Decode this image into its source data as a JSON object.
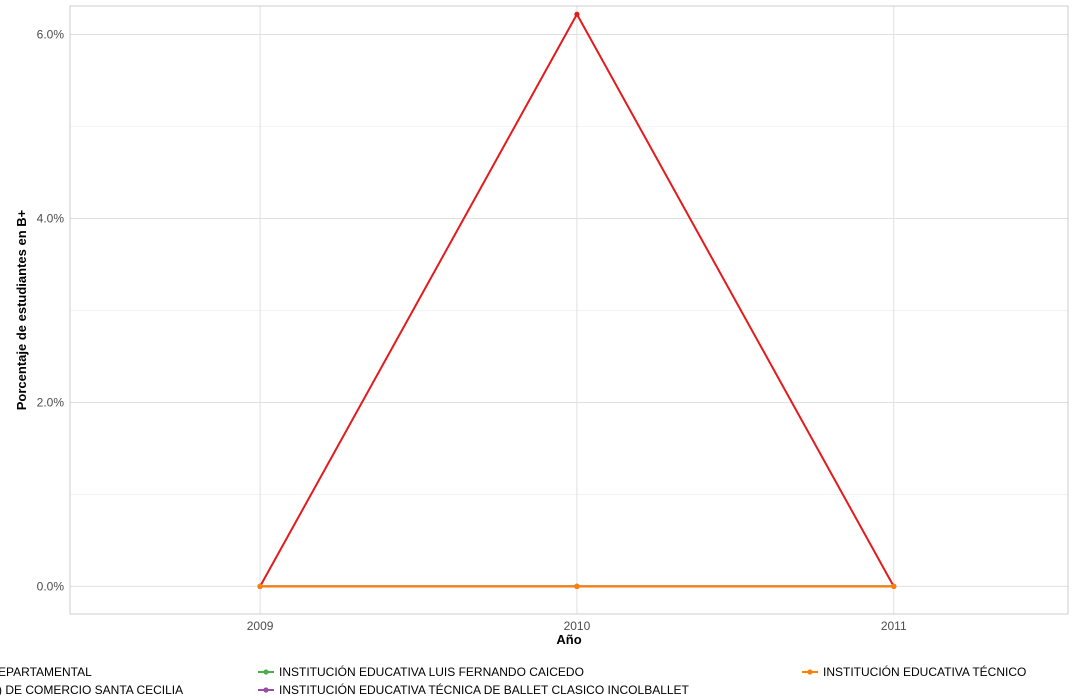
{
  "chart_data": {
    "type": "line",
    "title": "",
    "xlabel": "Año",
    "ylabel": "Porcentaje de estudiantes en B+",
    "x": [
      "2009",
      "2010",
      "2011"
    ],
    "xlim": [
      2008.4,
      2011.55
    ],
    "ylim": [
      -0.003,
      0.0631
    ],
    "y_ticks": [
      {
        "value": 0.0,
        "label": "0.0%"
      },
      {
        "value": 0.02,
        "label": "2.0%"
      },
      {
        "value": 0.04,
        "label": "4.0%"
      },
      {
        "value": 0.06,
        "label": "6.0%"
      }
    ],
    "grid": true,
    "legend_position": "bottom",
    "series": [
      {
        "name": "…EPARTAMENTAL",
        "color": "#e41a1c",
        "values": [
          0.0,
          0.0622,
          0.0
        ]
      },
      {
        "name": "…) DE COMERCIO SANTA CECILIA",
        "color": "#377eb8",
        "values": [
          0.0,
          0.0,
          0.0
        ]
      },
      {
        "name": "INSTITUCIÓN EDUCATIVA LUIS FERNANDO CAICEDO",
        "color": "#4daf4a",
        "values": [
          0.0,
          0.0,
          0.0
        ]
      },
      {
        "name": "INSTITUCIÓN EDUCATIVA TÉCNICA DE BALLET CLASICO INCOLBALLET",
        "color": "#984ea3",
        "values": [
          0.0,
          0.0,
          0.0
        ]
      },
      {
        "name": "INSTITUCIÓN EDUCATIVA TÉCNICO…",
        "color": "#ff7f00",
        "values": [
          0.0,
          0.0,
          0.0
        ]
      }
    ]
  }
}
